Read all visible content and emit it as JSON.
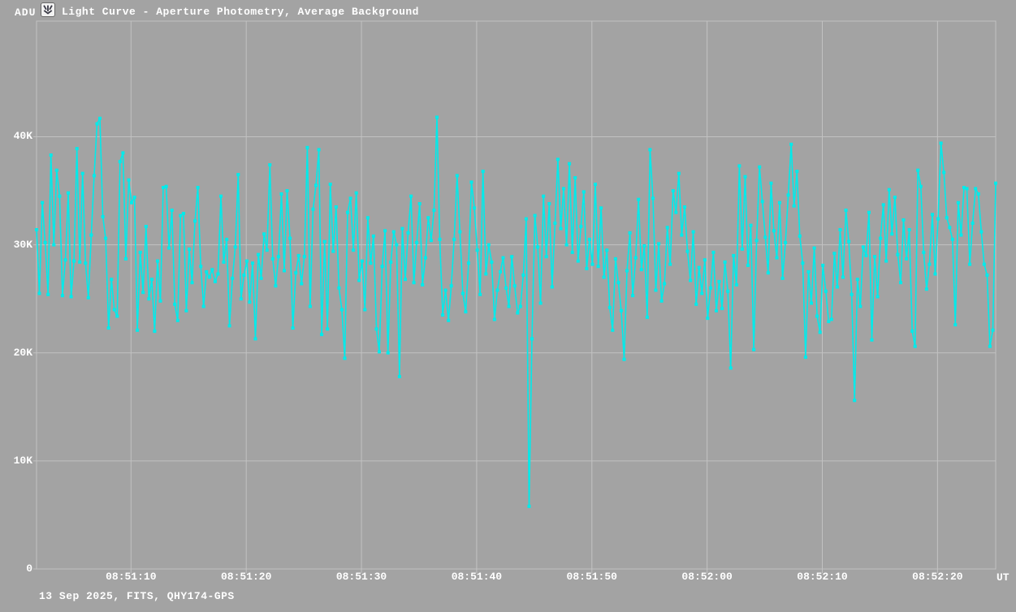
{
  "header": {
    "y_unit_label": "ADU",
    "icon": "occultation-tool-icon",
    "title": "Light Curve - Aperture Photometry, Average Background"
  },
  "footer": {
    "caption": "13 Sep 2025, FITS, QHY174-GPS",
    "x_unit_label": "UT"
  },
  "colors": {
    "background": "#a3a3a3",
    "grid": "#c2c2c2",
    "text": "#ffffff",
    "curve": "#00ebeb"
  },
  "chart_data": {
    "type": "line",
    "title": "Light Curve - Aperture Photometry, Average Background",
    "xlabel": "UT",
    "ylabel": "ADU",
    "legend": "none",
    "grid": true,
    "marker": "square",
    "y_axis": {
      "unit": "ADU",
      "range_kadu": [
        0,
        50.7
      ],
      "ticks": [
        {
          "label": "0",
          "v": 0
        },
        {
          "label": "10K",
          "v": 10
        },
        {
          "label": "20K",
          "v": 20
        },
        {
          "label": "30K",
          "v": 30
        },
        {
          "label": "40K",
          "v": 40
        }
      ]
    },
    "x_axis": {
      "unit": "UT",
      "start_utc": "08:51:02",
      "end_utc": "08:52:25",
      "sample_interval_s": 0.25,
      "t_range_s": [
        61.8,
        145.05
      ],
      "ticks": [
        {
          "label": "08:51:10",
          "t": 70
        },
        {
          "label": "08:51:20",
          "t": 80
        },
        {
          "label": "08:51:30",
          "t": 90
        },
        {
          "label": "08:51:40",
          "t": 100
        },
        {
          "label": "08:51:50",
          "t": 110
        },
        {
          "label": "08:52:00",
          "t": 120
        },
        {
          "label": "08:52:10",
          "t": 130
        },
        {
          "label": "08:52:20",
          "t": 140
        }
      ]
    },
    "series": [
      {
        "name": "aperture-photometry-average-background",
        "color": "#00ebeb",
        "values_kadu": [
          31.4,
          25.5,
          33.9,
          30.2,
          25.4,
          38.3,
          30.0,
          36.9,
          34.5,
          25.3,
          28.6,
          34.8,
          25.2,
          28.5,
          38.9,
          28.4,
          36.6,
          28.3,
          25.1,
          30.9,
          36.4,
          41.2,
          41.7,
          32.6,
          30.6,
          22.3,
          26.8,
          24.0,
          23.4,
          37.7,
          38.5,
          28.7,
          36.0,
          33.9,
          34.4,
          22.1,
          29.3,
          25.6,
          31.7,
          25.0,
          26.8,
          22.0,
          28.5,
          24.8,
          35.3,
          35.4,
          29.7,
          33.2,
          24.5,
          23.0,
          32.7,
          32.9,
          23.9,
          29.6,
          26.5,
          32.2,
          35.3,
          28.0,
          24.3,
          27.5,
          27.0,
          27.7,
          26.6,
          27.3,
          34.5,
          28.4,
          30.5,
          22.5,
          26.9,
          29.8,
          36.5,
          25.0,
          27.2,
          28.5,
          24.7,
          28.3,
          21.3,
          29.1,
          26.9,
          31.0,
          29.5,
          37.4,
          28.7,
          26.2,
          28.9,
          34.7,
          27.6,
          35.0,
          30.6,
          22.3,
          27.4,
          29.0,
          26.4,
          28.9,
          39.0,
          24.3,
          33.3,
          35.5,
          38.8,
          21.7,
          30.3,
          22.2,
          35.6,
          29.4,
          33.5,
          26.0,
          24.0,
          19.5,
          33.0,
          34.3,
          29.5,
          34.8,
          26.7,
          28.5,
          24.0,
          32.5,
          28.3,
          30.8,
          22.2,
          20.1,
          28.0,
          31.3,
          20.0,
          28.4,
          31.2,
          30.0,
          17.8,
          31.5,
          26.8,
          31.1,
          34.5,
          26.5,
          30.2,
          33.8,
          26.3,
          28.8,
          32.5,
          30.4,
          33.2,
          41.8,
          30.5,
          23.5,
          25.8,
          23.0,
          26.2,
          30.5,
          36.4,
          31.2,
          25.5,
          23.8,
          28.3,
          35.8,
          33.4,
          29.5,
          25.4,
          36.8,
          27.3,
          30.0,
          28.4,
          23.1,
          25.8,
          27.5,
          28.8,
          26.0,
          24.3,
          28.9,
          26.2,
          23.7,
          24.3,
          27.2,
          32.4,
          5.8,
          21.3,
          32.7,
          29.8,
          24.6,
          34.5,
          28.9,
          33.8,
          26.1,
          32.0,
          37.9,
          31.5,
          35.2,
          30.0,
          37.5,
          29.3,
          36.2,
          28.5,
          31.7,
          34.9,
          27.8,
          30.5,
          28.2,
          35.6,
          28.0,
          33.4,
          27.0,
          29.5,
          24.2,
          22.1,
          28.7,
          26.5,
          23.9,
          19.4,
          27.6,
          31.1,
          25.3,
          28.8,
          34.2,
          27.7,
          29.9,
          23.3,
          38.8,
          34.3,
          25.8,
          30.1,
          24.8,
          26.4,
          31.6,
          28.2,
          35.0,
          33.0,
          36.6,
          30.9,
          33.5,
          29.4,
          26.7,
          31.2,
          24.5,
          27.9,
          25.5,
          28.6,
          23.2,
          26.0,
          29.3,
          23.9,
          26.6,
          24.1,
          28.4,
          25.7,
          18.6,
          29.0,
          26.3,
          37.3,
          29.6,
          36.3,
          28.1,
          31.8,
          20.3,
          30.4,
          37.2,
          34.0,
          30.7,
          27.4,
          35.7,
          31.3,
          28.8,
          33.9,
          26.9,
          30.2,
          34.6,
          39.3,
          33.6,
          36.8,
          30.8,
          28.3,
          19.6,
          27.5,
          24.6,
          29.7,
          23.4,
          21.9,
          28.1,
          25.7,
          22.9,
          23.1,
          29.2,
          26.1,
          31.4,
          27.0,
          33.2,
          30.3,
          25.4,
          15.6,
          26.8,
          24.3,
          29.8,
          29.0,
          33.0,
          21.2,
          28.9,
          25.2,
          30.6,
          33.7,
          28.5,
          35.1,
          31.0,
          34.4,
          29.1,
          26.5,
          32.3,
          28.7,
          31.4,
          22.0,
          20.6,
          36.9,
          35.4,
          29.3,
          25.9,
          28.2,
          32.8,
          27.3,
          32.4,
          39.4,
          36.7,
          32.5,
          31.6,
          30.5,
          22.6,
          33.9,
          30.9,
          35.3,
          35.2,
          28.2,
          32.0,
          35.2,
          34.7,
          31.2,
          28.2,
          27.2,
          20.6,
          22.1,
          35.7
        ]
      }
    ]
  }
}
